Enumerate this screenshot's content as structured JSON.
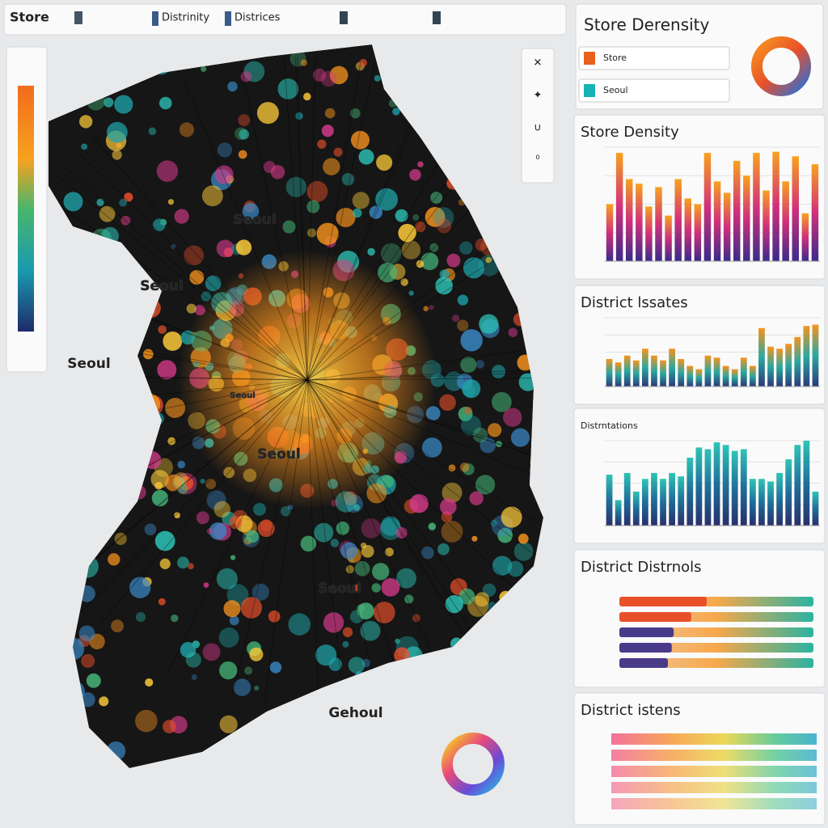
{
  "toolbar": {
    "items": [
      "Store",
      "Distrinity",
      "Districes"
    ]
  },
  "map": {
    "labels": [
      "Seoul",
      "Seoul",
      "Seoul",
      "Seoul",
      "Seoul",
      "Seoul",
      "Gehoul"
    ]
  },
  "summary": {
    "title": "Store Derensity",
    "legend": [
      {
        "name": "Store",
        "color": "#e8601c"
      },
      {
        "name": "Seoul",
        "color": "#17b3b3"
      }
    ]
  },
  "panels": [
    {
      "type": "bar",
      "title": "Store Density",
      "ylim": [
        0,
        100
      ],
      "colors": [
        "#f7a21e",
        "#d2307a",
        "#3b2a8a"
      ],
      "values": [
        50,
        95,
        72,
        68,
        48,
        65,
        40,
        72,
        55,
        50,
        95,
        70,
        60,
        88,
        75,
        95,
        62,
        96,
        70,
        92,
        42,
        85
      ]
    },
    {
      "type": "bar",
      "title": "District lssates",
      "ylim": [
        0,
        100
      ],
      "colors": [
        "#f7931e",
        "#2aa8a0",
        "#2a3a7a"
      ],
      "values": [
        40,
        35,
        45,
        38,
        55,
        45,
        38,
        55,
        40,
        30,
        25,
        45,
        42,
        30,
        25,
        42,
        30,
        85,
        58,
        55,
        62,
        72,
        88,
        90
      ]
    },
    {
      "type": "bar",
      "title": "Distrntations",
      "ylim": [
        0,
        100
      ],
      "colors": [
        "#2ec4b6",
        "#1f6f9a",
        "#27306b"
      ],
      "values": [
        60,
        30,
        62,
        40,
        55,
        62,
        55,
        62,
        58,
        80,
        92,
        90,
        98,
        95,
        88,
        90,
        55,
        55,
        52,
        62,
        78,
        95,
        100,
        40
      ]
    },
    {
      "type": "hbar",
      "title": "District Distrnols",
      "xlim": [
        0,
        100
      ],
      "series": [
        {
          "color": "#e8502a",
          "values": [
            45,
            37,
            28,
            27,
            25
          ]
        }
      ]
    },
    {
      "type": "bands",
      "title": "District istens"
    }
  ]
}
